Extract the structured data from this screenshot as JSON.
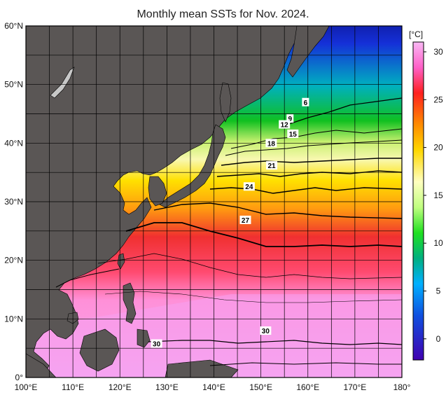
{
  "title": "Monthly mean SSTs for Nov. 2024.",
  "map": {
    "lon_labels": [
      "100°E",
      "110°E",
      "120°E",
      "130°E",
      "140°E",
      "150°E",
      "160°E",
      "170°E",
      "180°"
    ],
    "lat_labels": [
      "60°N",
      "50°N",
      "40°N",
      "30°N",
      "20°N",
      "10°N",
      "0°"
    ],
    "contour_labels": [
      {
        "text": "6",
        "lon": 159.5,
        "lat": 47.0
      },
      {
        "text": "9",
        "lon": 156.2,
        "lat": 44.2
      },
      {
        "text": "12",
        "lon": 155.0,
        "lat": 43.2
      },
      {
        "text": "15",
        "lon": 156.8,
        "lat": 41.6
      },
      {
        "text": "18",
        "lon": 152.2,
        "lat": 40.0
      },
      {
        "text": "21",
        "lon": 152.3,
        "lat": 36.2
      },
      {
        "text": "24",
        "lon": 147.5,
        "lat": 32.6
      },
      {
        "text": "27",
        "lon": 146.7,
        "lat": 26.9
      },
      {
        "text": "30",
        "lon": 151.0,
        "lat": 8.0
      },
      {
        "text": "30",
        "lon": 127.8,
        "lat": 5.8
      }
    ]
  },
  "colorbar": {
    "unit": "[°C]",
    "labels": [
      "30",
      "25",
      "20",
      "15",
      "10",
      "5",
      "0"
    ],
    "stops": [
      "#f5a0f0",
      "#ff60c8",
      "#f02020",
      "#ff8c00",
      "#ffd700",
      "#ffff80",
      "#ffffe0",
      "#80ff60",
      "#00d000",
      "#00b0a0",
      "#00a0ff",
      "#0040e0",
      "#3000b0"
    ]
  },
  "colors": {
    "land": "#5a5655",
    "grid": "#000000"
  }
}
